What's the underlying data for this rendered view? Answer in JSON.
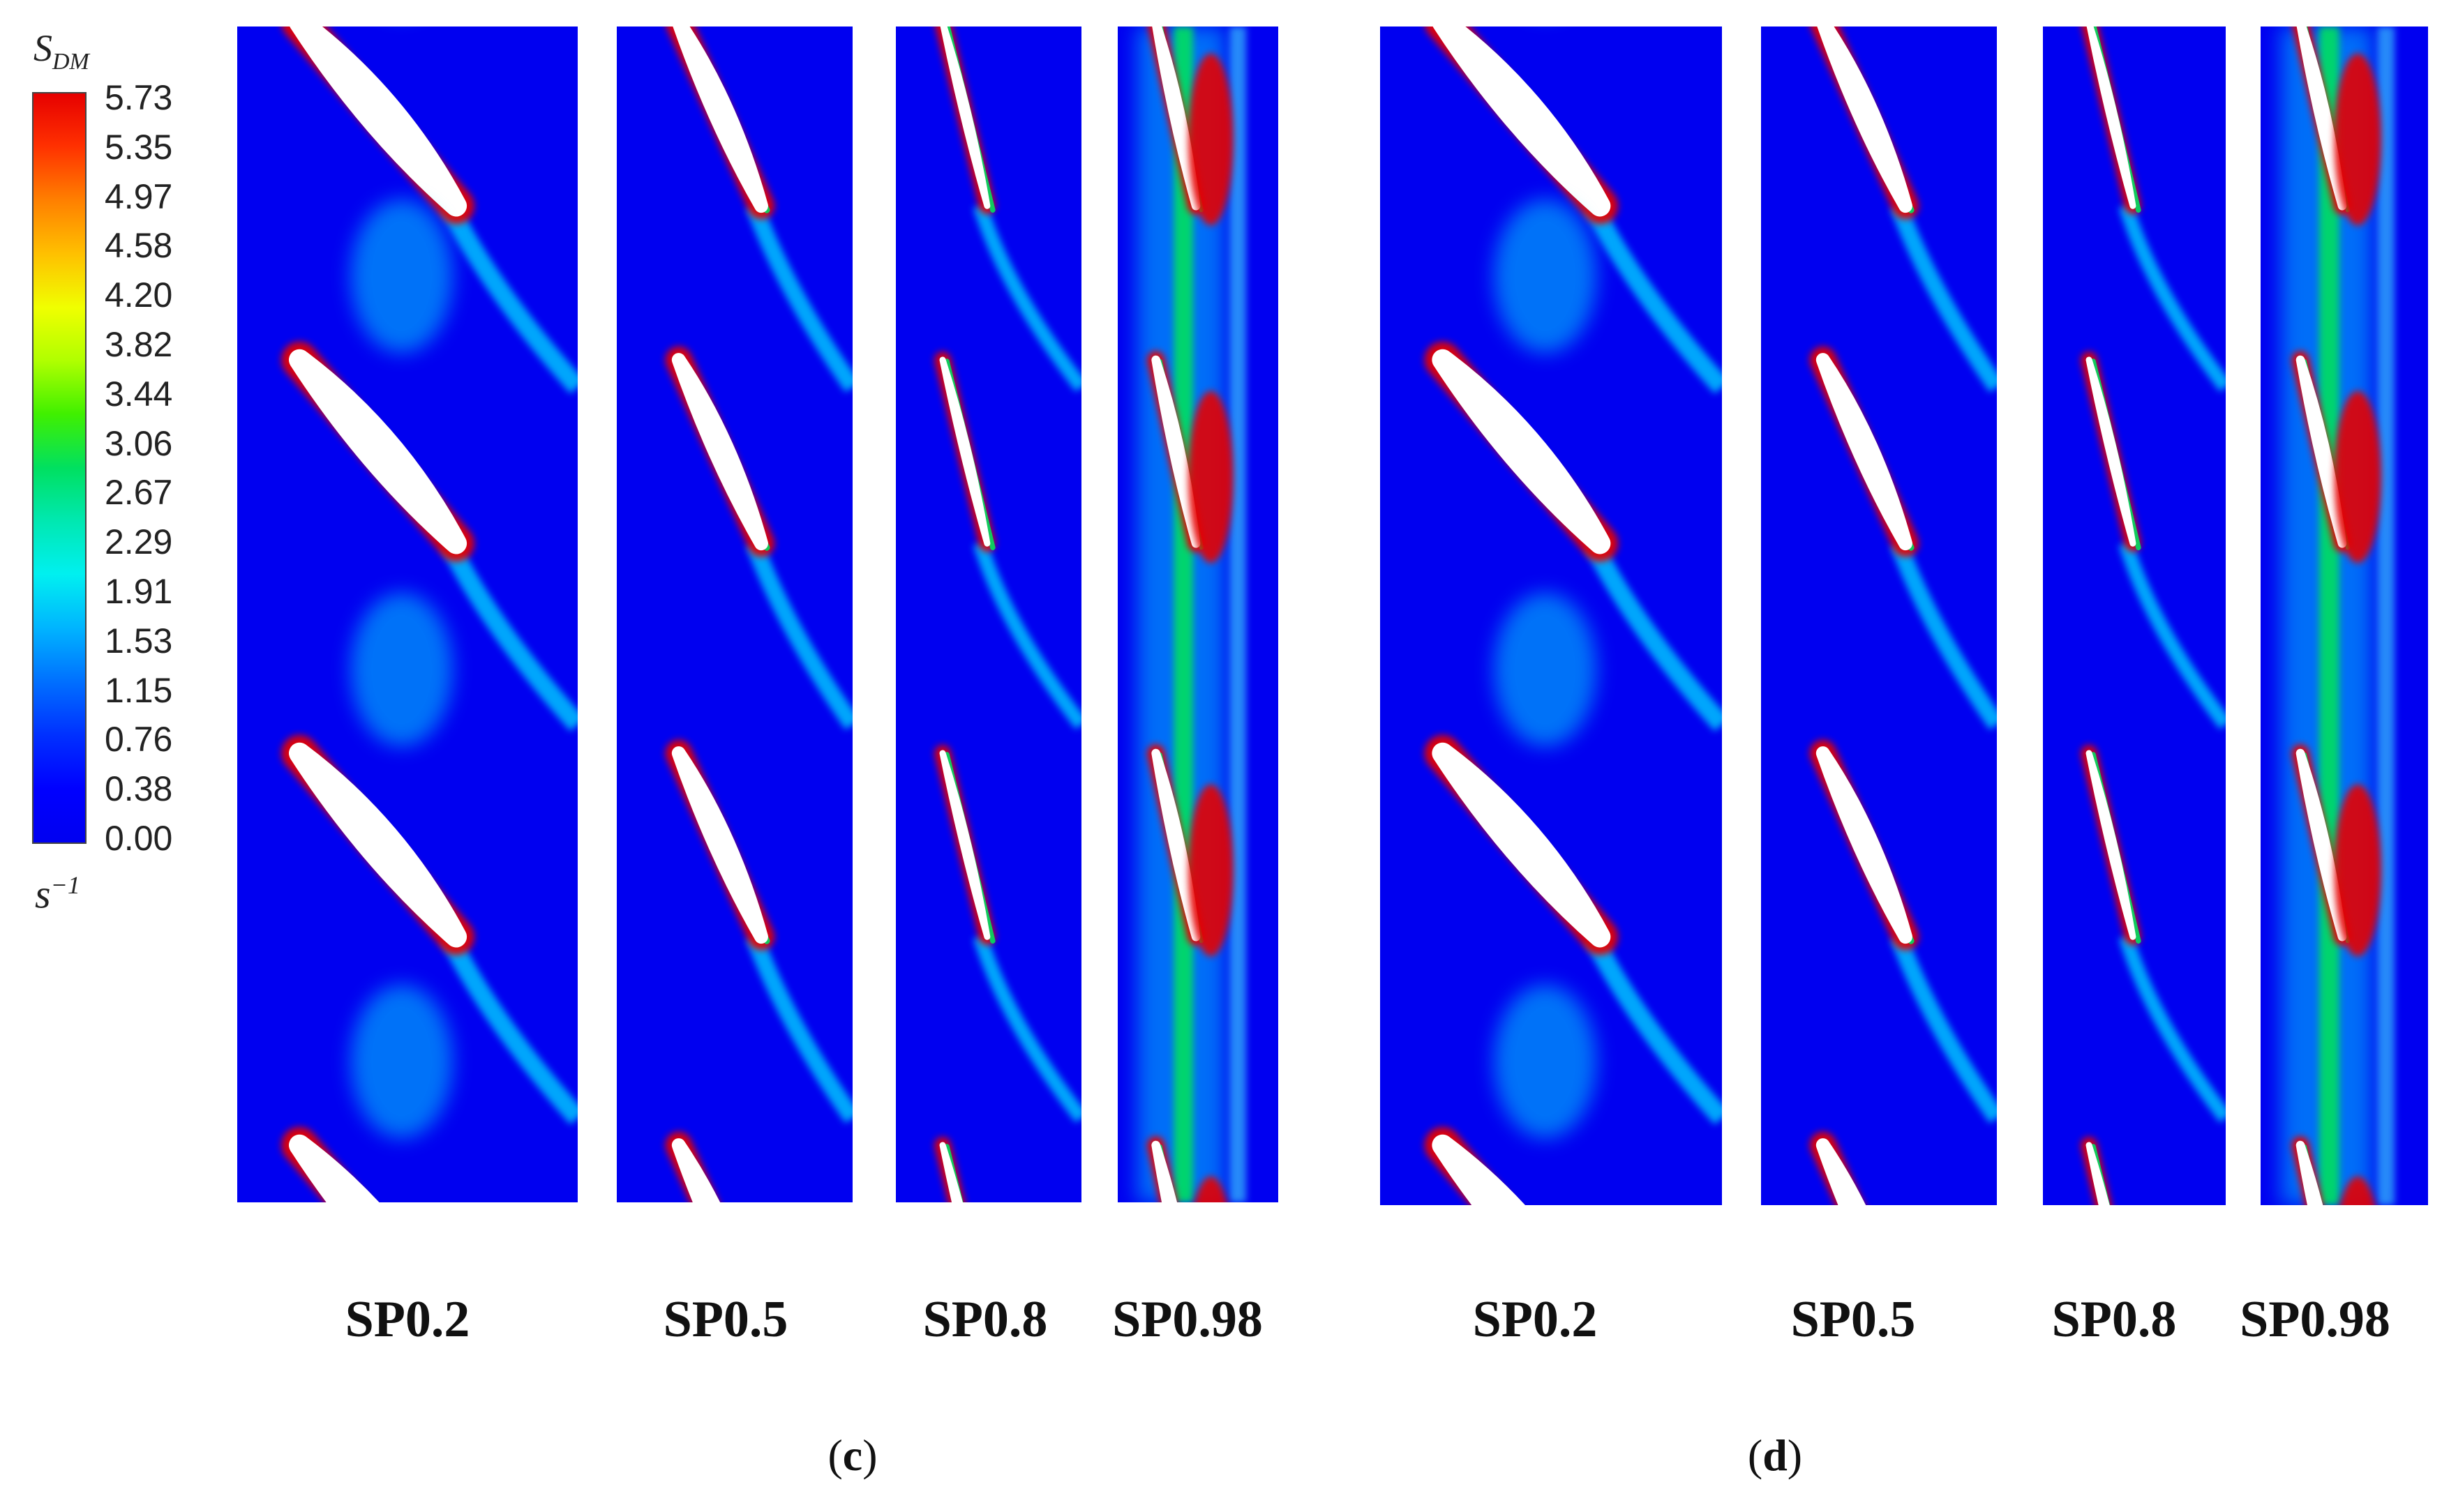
{
  "colorbar": {
    "title_base": "S",
    "title_sub": "DM",
    "ticks": [
      "5.73",
      "5.35",
      "4.97",
      "4.58",
      "4.20",
      "3.82",
      "3.44",
      "3.06",
      "2.67",
      "2.29",
      "1.91",
      "1.53",
      "1.15",
      "0.76",
      "0.38",
      "0.00"
    ],
    "unit_base": "s",
    "unit_exp": "−1",
    "range": [
      0.0,
      5.73
    ],
    "colormap": [
      "#0000f0",
      "#00b4ff",
      "#00f0f0",
      "#00e060",
      "#f0ff00",
      "#ff8000",
      "#e60000"
    ]
  },
  "groups": [
    {
      "label_open": "(",
      "label_letter": "c",
      "label_close": ")",
      "panels": [
        {
          "label": "SP0.2"
        },
        {
          "label": "SP0.5"
        },
        {
          "label": "SP0.8"
        },
        {
          "label": "SP0.98"
        }
      ]
    },
    {
      "label_open": "(",
      "label_letter": "d",
      "label_close": ")",
      "panels": [
        {
          "label": "SP0.2"
        },
        {
          "label": "SP0.5"
        },
        {
          "label": "SP0.8"
        },
        {
          "label": "SP0.98"
        }
      ]
    }
  ],
  "colors": {
    "field_background": "#0000f0",
    "blade": "#ffffff",
    "high": "#e60000",
    "mid": "#00e060",
    "low": "#00d0ff"
  }
}
